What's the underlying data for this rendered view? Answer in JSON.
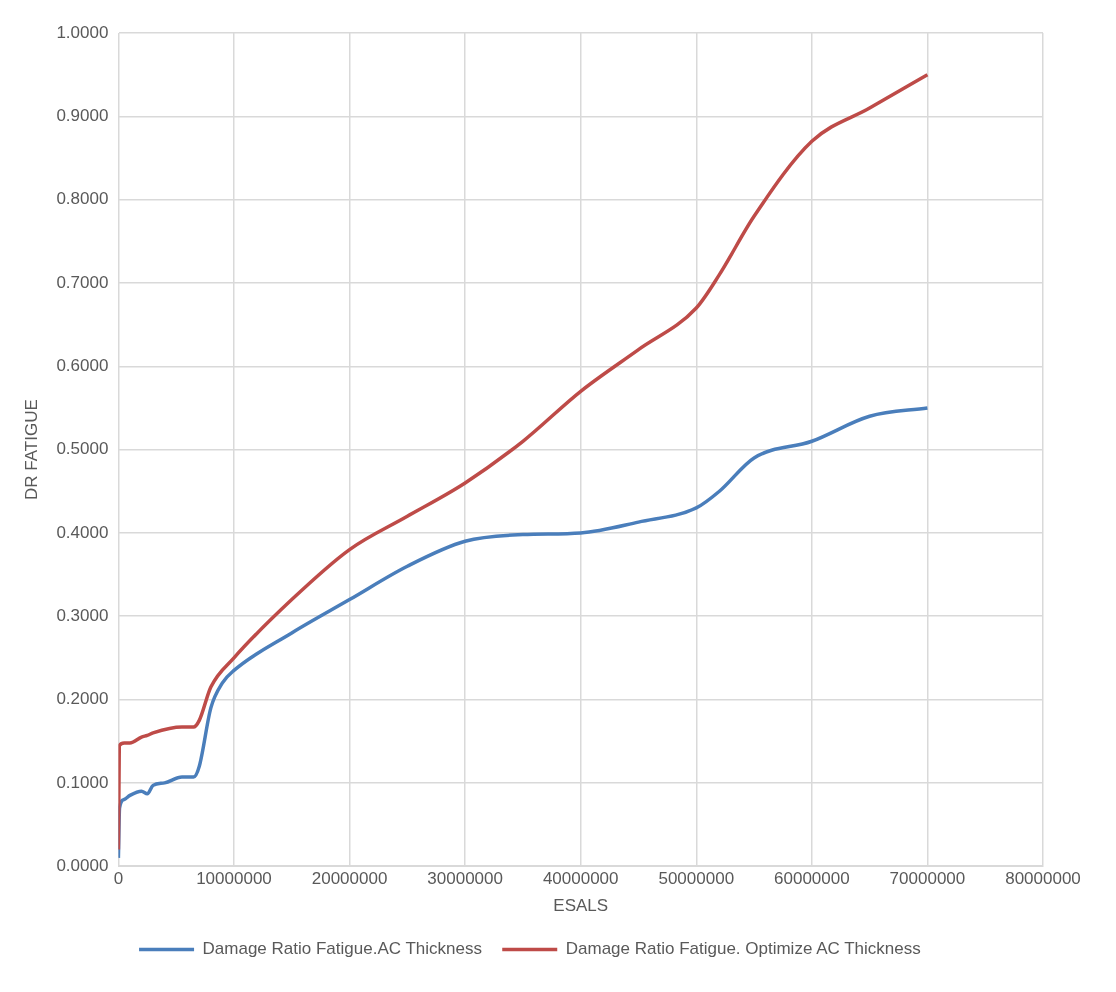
{
  "chart_data": {
    "type": "line",
    "xlabel": "ESALS",
    "ylabel": "DR FATIGUE",
    "xlim": [
      0,
      80000000
    ],
    "xticks": [
      0,
      10000000,
      20000000,
      30000000,
      40000000,
      50000000,
      60000000,
      70000000,
      80000000
    ],
    "ylim": [
      0,
      1
    ],
    "yticks": [
      {
        "value": 0,
        "label": "0.0000"
      },
      {
        "value": 0.1,
        "label": "0.1000"
      },
      {
        "value": 0.2,
        "label": "0.2000"
      },
      {
        "value": 0.3,
        "label": "0.3000"
      },
      {
        "value": 0.4,
        "label": "0.4000"
      },
      {
        "value": 0.5,
        "label": "0.5000"
      },
      {
        "value": 0.6,
        "label": "0.6000"
      },
      {
        "value": 0.7,
        "label": "0.7000"
      },
      {
        "value": 0.8,
        "label": "0.8000"
      },
      {
        "value": 0.9,
        "label": "0.9000"
      },
      {
        "value": 1,
        "label": "1.0000"
      }
    ],
    "grid": true,
    "legend": "bottom",
    "marker": "none",
    "line_style": "solid",
    "series": [
      {
        "name": "Damage Ratio Fatigue.AC Thickness",
        "color": "#4a7ebb",
        "x": [
          0,
          100000,
          500000,
          1000000,
          2000000,
          2500000,
          3000000,
          4000000,
          5500000,
          6500000,
          7000000,
          8000000,
          9000000,
          10000000,
          15000000,
          20000000,
          25000000,
          30000000,
          35000000,
          40000000,
          45000000,
          50000000,
          52000000,
          55000000,
          60000000,
          65000000,
          70000000
        ],
        "values": [
          0.01,
          0.07,
          0.08,
          0.085,
          0.09,
          0.087,
          0.097,
          0.1,
          0.107,
          0.107,
          0.12,
          0.19,
          0.22,
          0.235,
          0.28,
          0.32,
          0.36,
          0.39,
          0.398,
          0.4,
          0.413,
          0.43,
          0.45,
          0.49,
          0.51,
          0.54,
          0.55
        ]
      },
      {
        "name": "Damage Ratio Fatigue. Optimize AC Thickness",
        "color": "#be4b48",
        "x": [
          0,
          100000,
          500000,
          1000000,
          2000000,
          2500000,
          3000000,
          5500000,
          6500000,
          7000000,
          8000000,
          10000000,
          15000000,
          20000000,
          25000000,
          30000000,
          35000000,
          40000000,
          45000000,
          50000000,
          52000000,
          55000000,
          60000000,
          65000000,
          70000000
        ],
        "values": [
          0.02,
          0.145,
          0.148,
          0.148,
          0.155,
          0.157,
          0.16,
          0.167,
          0.167,
          0.175,
          0.215,
          0.25,
          0.32,
          0.38,
          0.42,
          0.46,
          0.51,
          0.57,
          0.62,
          0.67,
          0.71,
          0.78,
          0.87,
          0.91,
          0.95
        ]
      }
    ]
  }
}
